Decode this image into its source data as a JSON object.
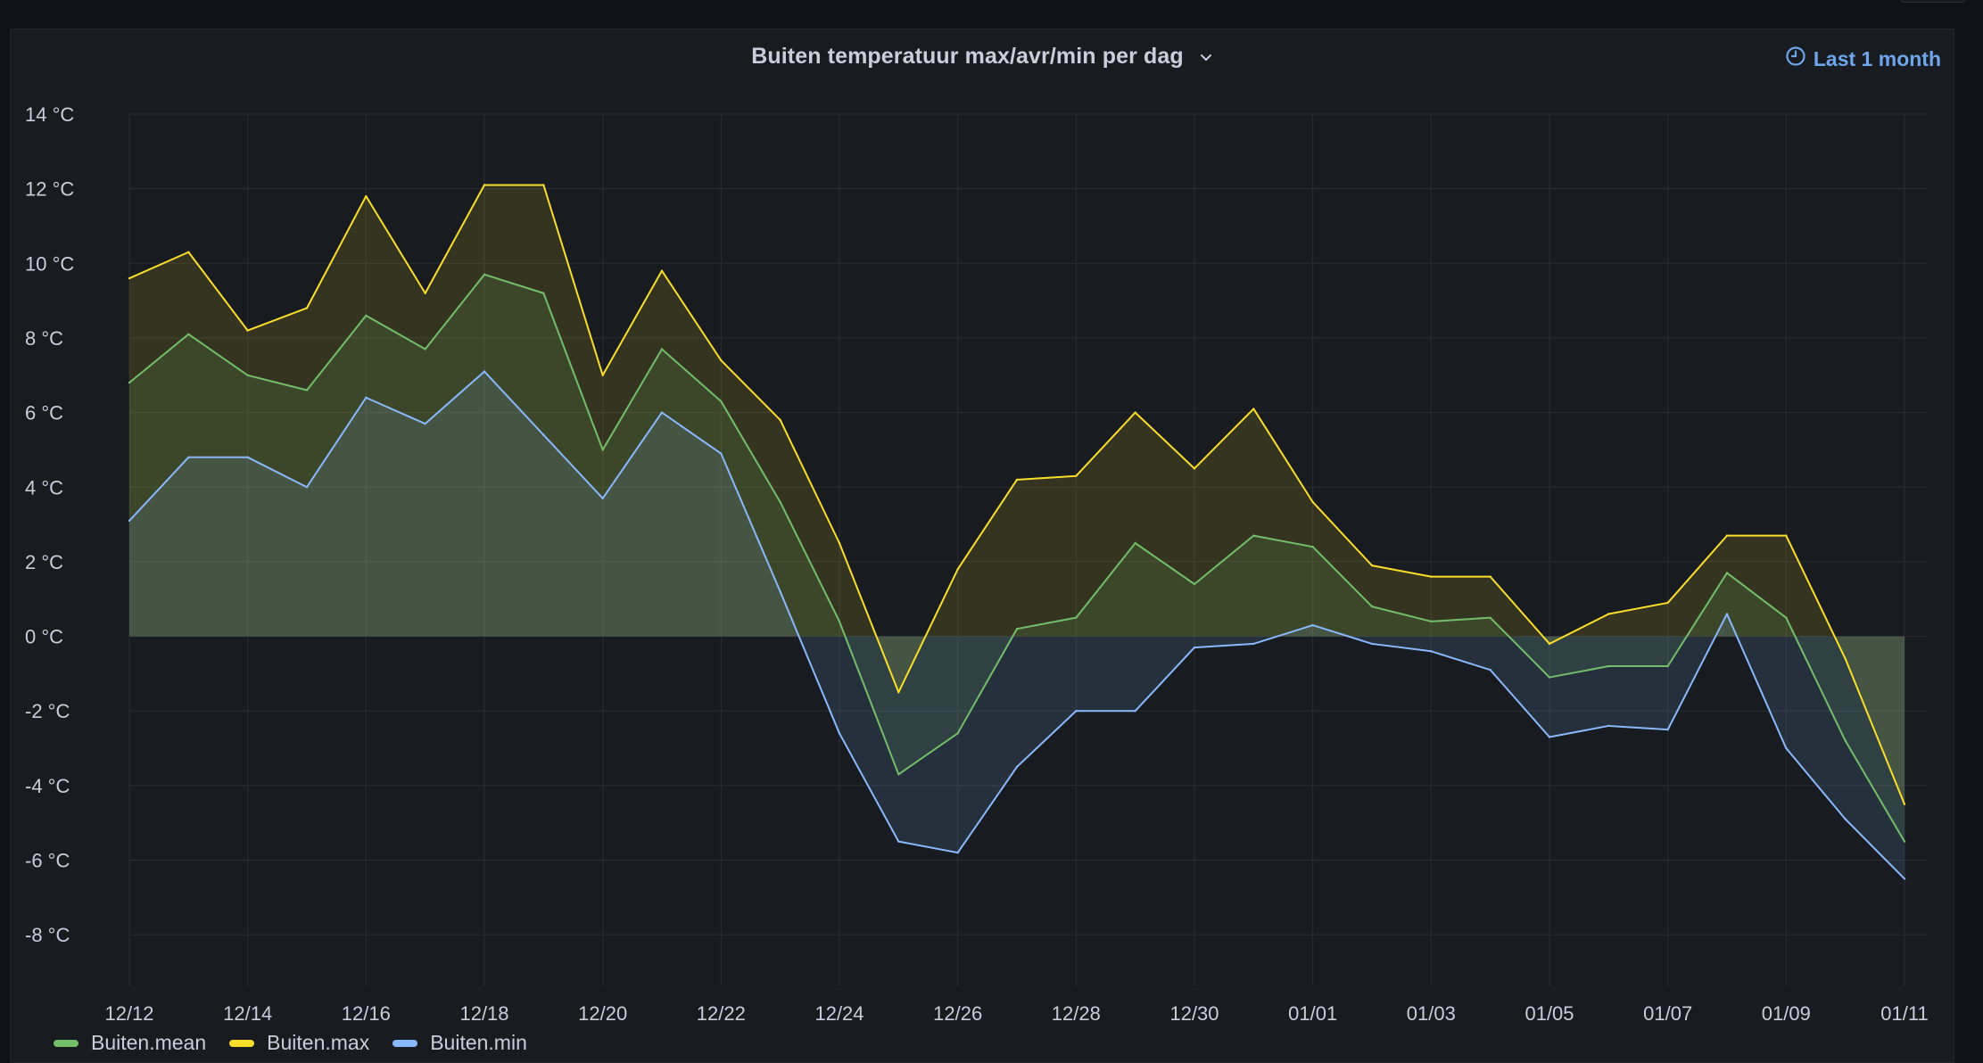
{
  "panel": {
    "title": "Buiten temperatuur max/avr/min per dag",
    "time_range": "Last 1 month"
  },
  "colors": {
    "mean": "#73bf69",
    "max": "#fade2a",
    "min": "#8ab8ff",
    "grid": "#2a2c32",
    "text": "#ccccdc"
  },
  "chart_data": {
    "type": "area",
    "title": "Buiten temperatuur max/avr/min per dag",
    "xlabel": "",
    "ylabel": "",
    "unit": "°C",
    "ylim": [
      -9,
      14
    ],
    "yticks": [
      14,
      12,
      10,
      8,
      6,
      4,
      2,
      0,
      -2,
      -4,
      -6,
      -8
    ],
    "ytick_labels": [
      "14 °C",
      "12 °C",
      "10 °C",
      "8 °C",
      "6 °C",
      "4 °C",
      "2 °C",
      "0 °C",
      "-2 °C",
      "-4 °C",
      "-6 °C",
      "-8 °C"
    ],
    "x": [
      "12/12",
      "12/13",
      "12/14",
      "12/15",
      "12/16",
      "12/17",
      "12/18",
      "12/19",
      "12/20",
      "12/21",
      "12/22",
      "12/23",
      "12/24",
      "12/25",
      "12/26",
      "12/27",
      "12/28",
      "12/29",
      "12/30",
      "12/31",
      "01/01",
      "01/02",
      "01/03",
      "01/04",
      "01/05",
      "01/06",
      "01/07",
      "01/08",
      "01/09",
      "01/10",
      "01/11"
    ],
    "xtick_labels": [
      "12/12",
      "12/14",
      "12/16",
      "12/18",
      "12/20",
      "12/22",
      "12/24",
      "12/26",
      "12/28",
      "12/30",
      "01/01",
      "01/03",
      "01/05",
      "01/07",
      "01/09",
      "01/11"
    ],
    "series": [
      {
        "name": "Buiten.max",
        "key": "max",
        "values": [
          9.6,
          10.3,
          8.2,
          8.8,
          11.8,
          9.2,
          12.1,
          12.1,
          7.0,
          9.8,
          7.4,
          5.8,
          2.5,
          -1.5,
          1.8,
          4.2,
          4.3,
          6.0,
          4.5,
          6.1,
          3.6,
          1.9,
          1.6,
          1.6,
          -0.2,
          0.6,
          0.9,
          2.7,
          2.7,
          -0.6,
          -4.5
        ]
      },
      {
        "name": "Buiten.mean",
        "key": "mean",
        "values": [
          6.8,
          8.1,
          7.0,
          6.6,
          8.6,
          7.7,
          9.7,
          9.2,
          5.0,
          7.7,
          6.3,
          3.6,
          0.4,
          -3.7,
          -2.6,
          0.2,
          0.5,
          2.5,
          1.4,
          2.7,
          2.4,
          0.8,
          0.4,
          0.5,
          -1.1,
          -0.8,
          -0.8,
          1.7,
          0.5,
          -2.8,
          -5.5
        ]
      },
      {
        "name": "Buiten.min",
        "key": "min",
        "values": [
          3.1,
          4.8,
          4.8,
          4.0,
          6.4,
          5.7,
          7.1,
          5.4,
          3.7,
          6.0,
          4.9,
          1.2,
          -2.6,
          -5.5,
          -5.8,
          -3.5,
          -2.0,
          -2.0,
          -0.3,
          -0.2,
          0.3,
          -0.2,
          -0.4,
          -0.9,
          -2.7,
          -2.4,
          -2.5,
          0.6,
          -3.0,
          -4.9,
          -6.5
        ]
      }
    ],
    "legend": [
      "Buiten.mean",
      "Buiten.max",
      "Buiten.min"
    ],
    "legend_position": "bottom-left",
    "grid": true
  }
}
